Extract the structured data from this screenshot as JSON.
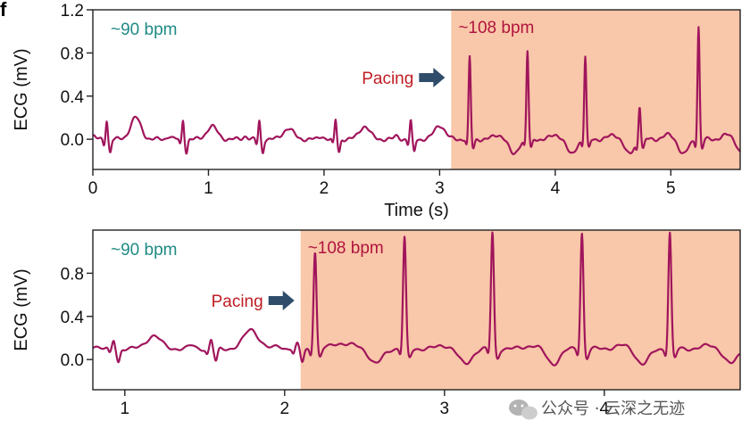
{
  "panel_label": "f",
  "watermark": {
    "text": "公众号 · 云深之无迹",
    "icon": "wechat-icon"
  },
  "colors": {
    "trace": "#a0155c",
    "pacing_region": "#f9c7a9",
    "left_annotation": "#1f8a84",
    "right_annotation": "#b0153e",
    "pacing_label": "#c01d24",
    "arrow": "#2f4d6b"
  },
  "chart_data": [
    {
      "type": "line",
      "xlabel": "Time (s)",
      "ylabel": "ECG (mV)",
      "xlim": [
        0,
        5.6
      ],
      "ylim": [
        -0.28,
        1.2
      ],
      "xticks": [
        0,
        1,
        2,
        3,
        4,
        5
      ],
      "yticks": [
        0.0,
        0.4,
        0.8,
        1.2
      ],
      "ytick_labels": [
        "0.0",
        "0.4",
        "0.8",
        "1.2"
      ],
      "grid": false,
      "pacing_start": 3.1,
      "annotations": {
        "before": "~90 bpm",
        "after": "~108 bpm",
        "pacing": "Pacing"
      },
      "baseline": 0.0,
      "beats": [
        {
          "t": 0.12,
          "qrs": 0.18,
          "p": 0.0,
          "tw": 0.2
        },
        {
          "t": 0.78,
          "qrs": 0.18,
          "p": 0.0,
          "tw": 0.12
        },
        {
          "t": 1.44,
          "qrs": 0.17,
          "p": 0.0,
          "tw": 0.1
        },
        {
          "t": 2.1,
          "qrs": 0.18,
          "p": 0.0,
          "tw": 0.12
        },
        {
          "t": 2.75,
          "qrs": 0.17,
          "p": 0.0,
          "tw": 0.13
        },
        {
          "t": 3.26,
          "qrs": 0.76,
          "p": 0.0,
          "tw": 0.04
        },
        {
          "t": 3.76,
          "qrs": 0.82,
          "p": 0.0,
          "tw": 0.04
        },
        {
          "t": 4.26,
          "qrs": 0.77,
          "p": 0.0,
          "tw": 0.04
        },
        {
          "t": 4.73,
          "qrs": 0.33,
          "p": 0.0,
          "tw": 0.04
        },
        {
          "t": 5.24,
          "qrs": 1.05,
          "p": 0.0,
          "tw": 0.04
        }
      ]
    },
    {
      "type": "line",
      "xlabel": "",
      "ylabel": "ECG (mV)",
      "xlim": [
        0.8,
        4.85
      ],
      "ylim": [
        -0.28,
        1.2
      ],
      "xticks": [
        1,
        2,
        3,
        4
      ],
      "yticks": [
        0.0,
        0.4,
        0.8
      ],
      "ytick_labels": [
        "0.0",
        "0.4",
        "0.8"
      ],
      "grid": false,
      "pacing_start": 2.1,
      "annotations": {
        "before": "~90 bpm",
        "after": "~108 bpm",
        "pacing": "Pacing"
      },
      "baseline": 0.1,
      "beats": [
        {
          "t": 0.93,
          "qrs": 0.08,
          "tw": 0.12
        },
        {
          "t": 1.54,
          "qrs": 0.08,
          "tw": 0.18
        },
        {
          "t": 2.08,
          "qrs": 0.04,
          "tw": 0.05
        },
        {
          "t": 2.19,
          "qrs": 0.91,
          "tw": 0.03
        },
        {
          "t": 2.75,
          "qrs": 1.03,
          "tw": 0.03
        },
        {
          "t": 3.3,
          "qrs": 1.08,
          "tw": 0.03
        },
        {
          "t": 3.86,
          "qrs": 1.08,
          "tw": 0.03
        },
        {
          "t": 4.41,
          "qrs": 1.08,
          "tw": 0.03
        }
      ]
    }
  ]
}
